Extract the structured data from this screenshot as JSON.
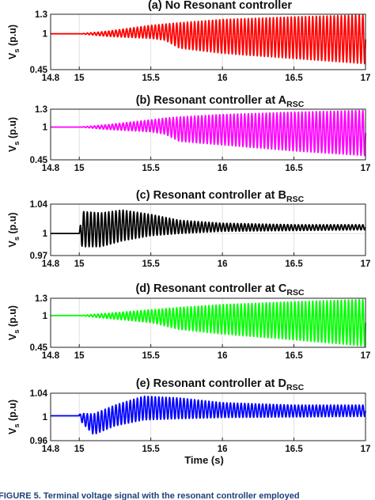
{
  "caption": "FIGURE 5. Terminal voltage signal with the resonant controller employed",
  "chart_data": [
    {
      "type": "line",
      "title_main": "(a) No Resonant controller",
      "title_sub": "",
      "ylabel_main": "V",
      "ylabel_sub": "s",
      "ylabel_unit": " (p.u)",
      "xlabel": "",
      "x_ticks": [
        "14.8",
        "15",
        "15.5",
        "16",
        "16.5",
        "17"
      ],
      "y_ticks": [
        "0.45",
        "1",
        "1.3"
      ],
      "xlim": [
        14.8,
        17
      ],
      "ylim": [
        0.45,
        1.3
      ],
      "color": "#ff0000",
      "pre_value": 1.0,
      "disturbance_time": 15.0,
      "envelope": [
        [
          15.0,
          1.0,
          1.0
        ],
        [
          15.2,
          1.04,
          0.96
        ],
        [
          15.5,
          1.13,
          0.93
        ],
        [
          15.6,
          1.15,
          0.9
        ],
        [
          15.7,
          1.17,
          0.78
        ],
        [
          16.0,
          1.22,
          0.7
        ],
        [
          16.5,
          1.26,
          0.62
        ],
        [
          17.0,
          1.29,
          0.54
        ]
      ],
      "cycles_per_unit": 40
    },
    {
      "type": "line",
      "title_main": "(b) Resonant controller at A",
      "title_sub": "RSC",
      "ylabel_main": "V",
      "ylabel_sub": "s",
      "ylabel_unit": " (p.u)",
      "xlabel": "",
      "x_ticks": [
        "14.8",
        "15",
        "15.5",
        "16",
        "16.5",
        "17"
      ],
      "y_ticks": [
        "0.45",
        "1",
        "1.3"
      ],
      "xlim": [
        14.8,
        17
      ],
      "ylim": [
        0.45,
        1.3
      ],
      "color": "#ff00ff",
      "pre_value": 1.0,
      "disturbance_time": 15.0,
      "envelope": [
        [
          15.0,
          1.0,
          1.0
        ],
        [
          15.2,
          1.04,
          0.96
        ],
        [
          15.5,
          1.12,
          0.92
        ],
        [
          15.6,
          1.15,
          0.88
        ],
        [
          15.7,
          1.17,
          0.76
        ],
        [
          16.0,
          1.21,
          0.7
        ],
        [
          16.5,
          1.25,
          0.6
        ],
        [
          17.0,
          1.28,
          0.52
        ]
      ],
      "cycles_per_unit": 40
    },
    {
      "type": "line",
      "title_main": "(c) Resonant controller at B",
      "title_sub": "RSC",
      "ylabel_main": "V",
      "ylabel_sub": "s",
      "ylabel_unit": " (p.u)",
      "xlabel": "",
      "x_ticks": [
        "14.8",
        "15",
        "15.5",
        "16",
        "16.5",
        "17"
      ],
      "y_ticks": [
        "0.97",
        "1",
        "1.04"
      ],
      "xlim": [
        14.8,
        17
      ],
      "ylim": [
        0.97,
        1.04
      ],
      "color": "#000000",
      "pre_value": 1.0,
      "disturbance_time": 15.0,
      "envelope": [
        [
          15.0,
          1.0,
          1.0
        ],
        [
          15.02,
          1.03,
          0.982
        ],
        [
          15.15,
          1.028,
          0.982
        ],
        [
          15.3,
          1.032,
          0.99
        ],
        [
          15.5,
          1.026,
          0.997
        ],
        [
          15.7,
          1.018,
          1.0
        ],
        [
          16.0,
          1.014,
          1.003
        ],
        [
          16.5,
          1.012,
          1.004
        ],
        [
          17.0,
          1.012,
          1.005
        ]
      ],
      "cycles_per_unit": 40
    },
    {
      "type": "line",
      "title_main": "(d) Resonant controller at C",
      "title_sub": "RSC",
      "ylabel_main": "V",
      "ylabel_sub": "s",
      "ylabel_unit": " (p.u)",
      "xlabel": "",
      "x_ticks": [
        "14.8",
        "15",
        "15.5",
        "16",
        "16.5",
        "17"
      ],
      "y_ticks": [
        "0.45",
        "1",
        "1.3"
      ],
      "xlim": [
        14.8,
        17
      ],
      "ylim": [
        0.45,
        1.3
      ],
      "color": "#00ff00",
      "pre_value": 1.0,
      "disturbance_time": 15.0,
      "envelope": [
        [
          15.0,
          1.0,
          1.0
        ],
        [
          15.2,
          1.04,
          0.95
        ],
        [
          15.5,
          1.1,
          0.88
        ],
        [
          15.7,
          1.14,
          0.76
        ],
        [
          16.0,
          1.19,
          0.68
        ],
        [
          16.5,
          1.24,
          0.58
        ],
        [
          17.0,
          1.28,
          0.47
        ]
      ],
      "cycles_per_unit": 40
    },
    {
      "type": "line",
      "title_main": "(e) Resonant controller at D",
      "title_sub": "RSC",
      "ylabel_main": "V",
      "ylabel_sub": "s",
      "ylabel_unit": " (p.u)",
      "xlabel": "Time (s)",
      "x_ticks": [
        "14.8",
        "15",
        "15.5",
        "16",
        "16.5",
        "17"
      ],
      "y_ticks": [
        "0.96",
        "1",
        "1.04"
      ],
      "xlim": [
        14.8,
        17
      ],
      "ylim": [
        0.96,
        1.04
      ],
      "color": "#0000ff",
      "pre_value": 1.002,
      "disturbance_time": 15.0,
      "envelope": [
        [
          15.0,
          1.004,
          1.004
        ],
        [
          15.02,
          1.006,
          0.99
        ],
        [
          15.1,
          1.005,
          0.97
        ],
        [
          15.25,
          1.02,
          0.985
        ],
        [
          15.45,
          1.035,
          0.995
        ],
        [
          15.7,
          1.032,
          0.997
        ],
        [
          16.0,
          1.024,
          0.999
        ],
        [
          16.5,
          1.02,
          1.0
        ],
        [
          17.0,
          1.02,
          1.001
        ]
      ],
      "cycles_per_unit": 40
    }
  ]
}
